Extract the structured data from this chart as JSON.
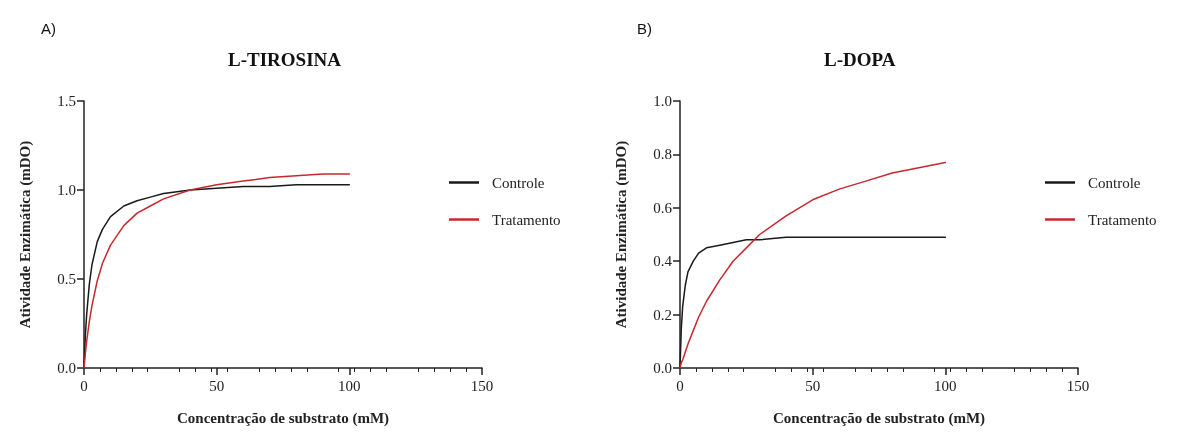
{
  "chart_data": [
    {
      "type": "line",
      "title": "L-TIROSINA",
      "xlabel": "Concentração de substrato (mM)",
      "ylabel": "Atividade Enzimática (mDO)",
      "annotations": [
        "A)"
      ],
      "x": [
        0,
        0.5,
        1,
        2,
        3,
        5,
        7,
        10,
        15,
        20,
        25,
        30,
        40,
        50,
        60,
        70,
        80,
        90,
        100
      ],
      "series": [
        {
          "name": "Controle",
          "color": "#1a1a1a",
          "values": [
            0,
            0.18,
            0.3,
            0.47,
            0.58,
            0.71,
            0.78,
            0.85,
            0.91,
            0.94,
            0.96,
            0.98,
            1.0,
            1.01,
            1.02,
            1.02,
            1.03,
            1.03,
            1.03
          ]
        },
        {
          "name": "Tratamento",
          "color": "#c8282d",
          "values": [
            0,
            0.08,
            0.15,
            0.26,
            0.35,
            0.49,
            0.59,
            0.69,
            0.8,
            0.87,
            0.91,
            0.95,
            1.0,
            1.03,
            1.05,
            1.07,
            1.08,
            1.09,
            1.09
          ]
        }
      ],
      "xlim": [
        0,
        150
      ],
      "xticks": [
        0,
        50,
        100,
        150
      ],
      "ylim": [
        0,
        1.5
      ],
      "yticks": [
        {
          "value": 0,
          "label": "0.0"
        },
        {
          "value": 0.5,
          "label": "0.5"
        },
        {
          "value": 1,
          "label": "1.0"
        },
        {
          "value": 1.5,
          "label": "1.5"
        }
      ],
      "grid": false,
      "legend": "right",
      "marker": "none",
      "line_style": "solid"
    },
    {
      "type": "line",
      "title": "L-DOPA",
      "xlabel": "Concentração de substrato (mM)",
      "ylabel": "Atividade Enzimática (mDO)",
      "annotations": [
        "B)"
      ],
      "x": [
        0,
        0.5,
        1,
        2,
        3,
        5,
        7,
        10,
        15,
        20,
        25,
        30,
        40,
        50,
        60,
        70,
        80,
        90,
        100
      ],
      "series": [
        {
          "name": "Controle",
          "color": "#1a1a1a",
          "values": [
            0,
            0.15,
            0.23,
            0.31,
            0.36,
            0.4,
            0.43,
            0.45,
            0.46,
            0.47,
            0.48,
            0.48,
            0.49,
            0.49,
            0.49,
            0.49,
            0.49,
            0.49,
            0.49
          ]
        },
        {
          "name": "Tratamento",
          "color": "#c8282d",
          "values": [
            0,
            0.02,
            0.03,
            0.06,
            0.09,
            0.14,
            0.19,
            0.25,
            0.33,
            0.4,
            0.45,
            0.5,
            0.57,
            0.63,
            0.67,
            0.7,
            0.73,
            0.75,
            0.77
          ]
        }
      ],
      "xlim": [
        0,
        150
      ],
      "xticks": [
        0,
        50,
        100,
        150
      ],
      "ylim": [
        0,
        1
      ],
      "yticks": [
        {
          "value": 0,
          "label": "0.0"
        },
        {
          "value": 0.2,
          "label": "0.2"
        },
        {
          "value": 0.4,
          "label": "0.4"
        },
        {
          "value": 0.6,
          "label": "0.6"
        },
        {
          "value": 0.8,
          "label": "0.8"
        },
        {
          "value": 1,
          "label": "1.0"
        }
      ],
      "grid": false,
      "legend": "right",
      "marker": "none",
      "line_style": "solid"
    }
  ]
}
